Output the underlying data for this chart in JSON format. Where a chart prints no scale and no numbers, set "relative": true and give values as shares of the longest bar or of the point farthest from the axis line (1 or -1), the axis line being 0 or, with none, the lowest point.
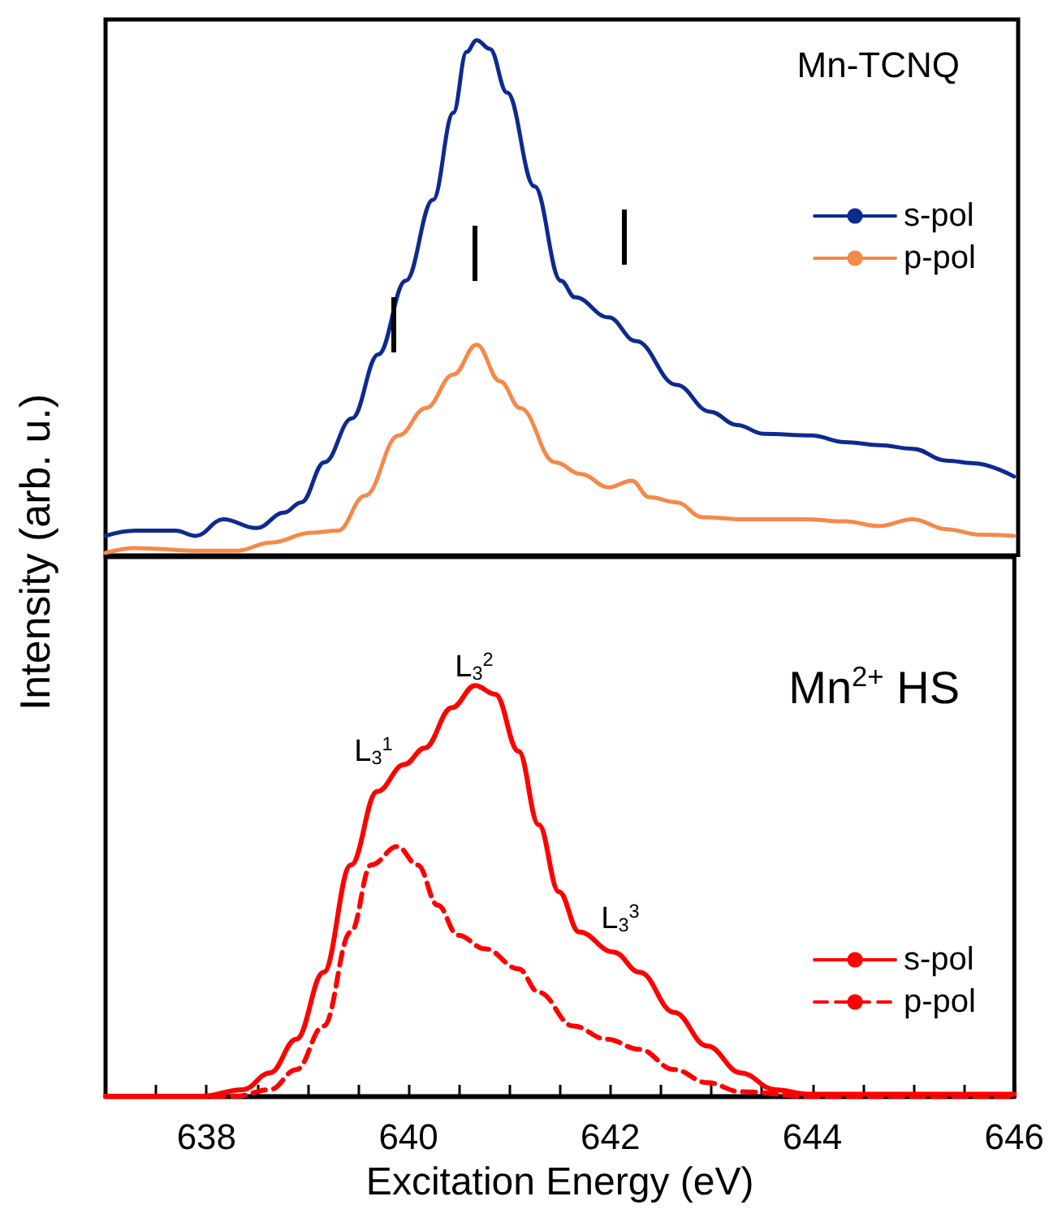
{
  "chart_data": [
    {
      "type": "line",
      "title": "Mn-TCNQ",
      "ylabel": "Intensity (arb. u.)",
      "relative": true,
      "xlim": [
        637,
        646
      ],
      "tick_labels": false,
      "legend": "top right",
      "marker": "none",
      "grid": false,
      "series": [
        {
          "name": "s-pol",
          "color": "#0d2a8f",
          "x": [
            637.0,
            637.29,
            637.69,
            637.89,
            638.16,
            638.49,
            638.76,
            638.93,
            639.16,
            639.43,
            639.69,
            639.96,
            640.23,
            640.43,
            640.56,
            640.66,
            640.79,
            640.96,
            641.23,
            641.49,
            641.63,
            641.96,
            642.23,
            642.63,
            642.96,
            643.23,
            643.49,
            643.96,
            644.29,
            644.63,
            644.96,
            645.29,
            645.56,
            645.96
          ],
          "values": [
            0.038,
            0.048,
            0.048,
            0.038,
            0.07,
            0.053,
            0.083,
            0.103,
            0.181,
            0.266,
            0.39,
            0.533,
            0.69,
            0.859,
            0.977,
            1.0,
            0.983,
            0.898,
            0.716,
            0.533,
            0.501,
            0.462,
            0.416,
            0.331,
            0.279,
            0.253,
            0.236,
            0.233,
            0.22,
            0.214,
            0.207,
            0.184,
            0.179,
            0.153
          ]
        },
        {
          "name": "p-pol",
          "color": "#f5894a",
          "x": [
            637.0,
            637.29,
            637.96,
            638.29,
            638.63,
            639.03,
            639.29,
            639.56,
            639.89,
            640.16,
            640.43,
            640.66,
            640.89,
            641.09,
            641.43,
            641.69,
            641.96,
            642.19,
            642.36,
            642.63,
            642.89,
            643.29,
            643.89,
            644.29,
            644.63,
            644.96,
            645.29,
            645.63,
            645.96
          ],
          "values": [
            0.005,
            0.014,
            0.009,
            0.009,
            0.025,
            0.044,
            0.048,
            0.116,
            0.233,
            0.286,
            0.351,
            0.409,
            0.338,
            0.286,
            0.181,
            0.158,
            0.132,
            0.145,
            0.113,
            0.103,
            0.074,
            0.07,
            0.07,
            0.066,
            0.057,
            0.07,
            0.051,
            0.04,
            0.038
          ]
        }
      ]
    },
    {
      "type": "line",
      "title": "Mn$^{2+}$ HS",
      "xlabel": "Excitation Energy (eV)",
      "relative": true,
      "xlim": [
        637,
        646
      ],
      "tick_labels": "x",
      "legend": "bottom right",
      "marker": "none",
      "grid": false,
      "xticks": [
        {
          "value": 637.5,
          "label": null
        },
        638,
        {
          "value": 638.5,
          "label": null
        },
        {
          "value": 639,
          "label": null
        },
        {
          "value": 639.5,
          "label": null
        },
        640,
        {
          "value": 640.5,
          "label": null
        },
        {
          "value": 641,
          "label": null
        },
        {
          "value": 641.5,
          "label": null
        },
        642,
        {
          "value": 642.5,
          "label": null
        },
        {
          "value": 643,
          "label": null
        },
        {
          "value": 643.5,
          "label": null
        },
        644,
        {
          "value": 644.5,
          "label": null
        },
        {
          "value": 645,
          "label": null
        },
        {
          "value": 645.5,
          "label": null
        },
        646
      ],
      "annotations": [
        "L$_{3}$$^{1}$",
        "L$_{3}$$^{2}$",
        "L$_{3}$$^{3}$"
      ],
      "series": [
        {
          "name": "s-pol",
          "color": "#ff0000",
          "line_style": "solid",
          "x": [
            637.0,
            637.96,
            638.36,
            638.63,
            638.89,
            639.16,
            639.43,
            639.69,
            639.96,
            640.16,
            640.43,
            640.66,
            640.86,
            641.09,
            641.29,
            641.49,
            641.69,
            642.03,
            642.29,
            642.63,
            642.96,
            643.29,
            643.63,
            643.96,
            646.0
          ],
          "values": [
            0,
            0,
            0.016,
            0.057,
            0.139,
            0.302,
            0.563,
            0.742,
            0.808,
            0.848,
            0.946,
            1.0,
            0.979,
            0.84,
            0.661,
            0.498,
            0.4,
            0.351,
            0.302,
            0.204,
            0.122,
            0.057,
            0.016,
            0.005,
            0.005
          ]
        },
        {
          "name": "p-pol",
          "color": "#ff0000",
          "line_style": "dashed",
          "x": [
            637.0,
            638.29,
            638.63,
            638.89,
            639.16,
            639.43,
            639.63,
            639.89,
            640.09,
            640.29,
            640.49,
            640.76,
            641.09,
            641.29,
            641.63,
            641.96,
            642.29,
            642.63,
            642.96,
            643.29,
            643.96,
            646.0
          ],
          "values": [
            0,
            0,
            0.016,
            0.065,
            0.171,
            0.4,
            0.563,
            0.608,
            0.563,
            0.465,
            0.392,
            0.359,
            0.31,
            0.253,
            0.171,
            0.139,
            0.114,
            0.065,
            0.033,
            0.011,
            0,
            0
          ]
        }
      ]
    }
  ]
}
